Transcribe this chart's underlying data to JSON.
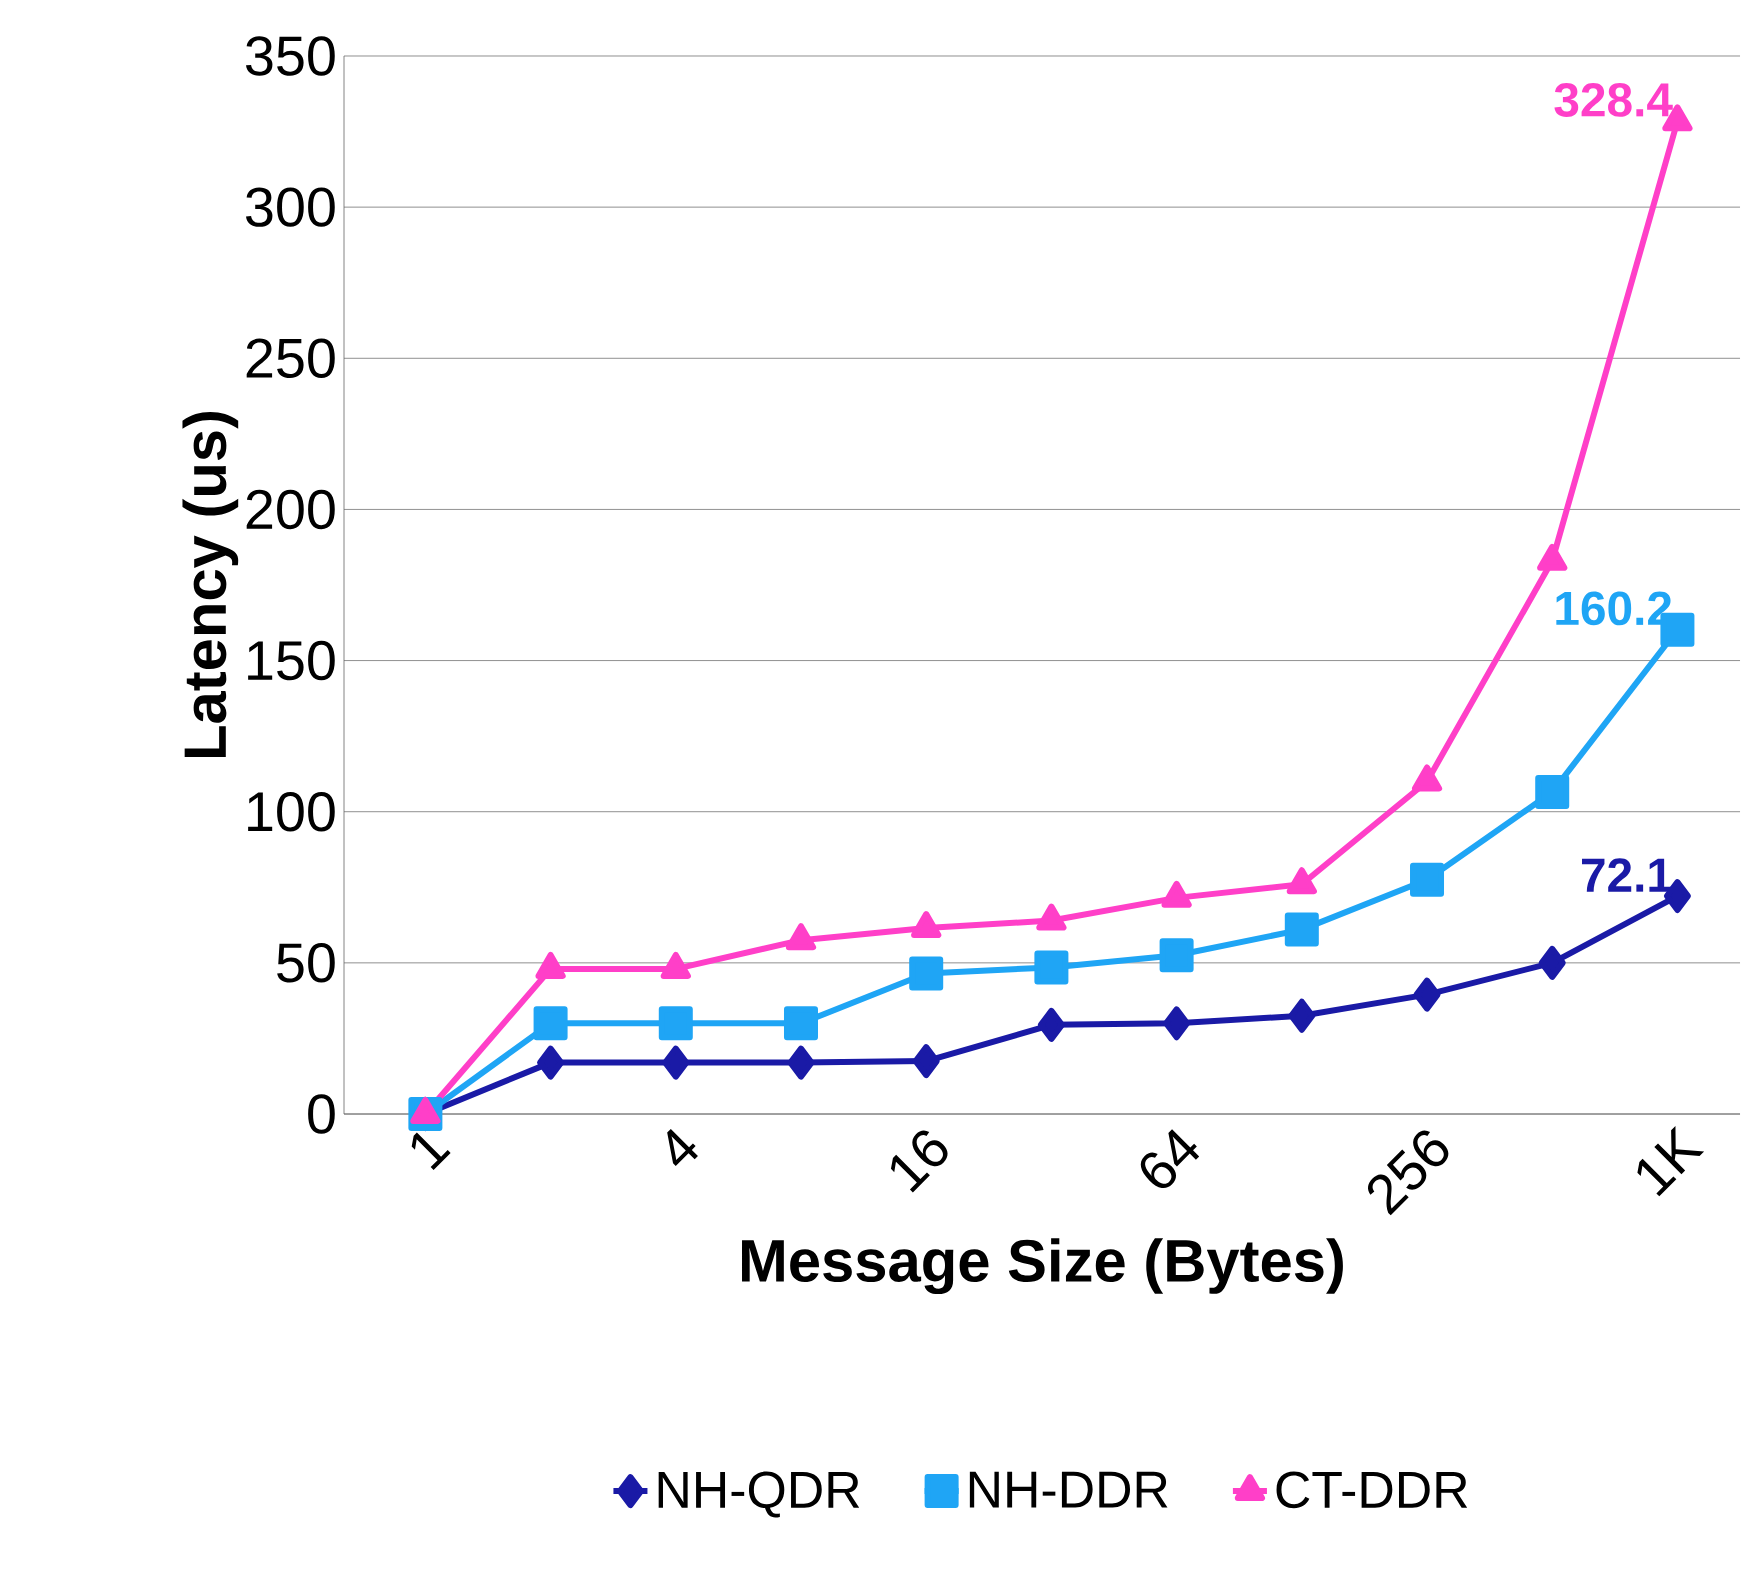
{
  "chart_data": {
    "type": "line",
    "xlabel": "Message Size (Bytes)",
    "ylabel": "Latency (us)",
    "categories": [
      "1",
      null,
      "4",
      null,
      "16",
      null,
      "64",
      null,
      "256",
      null,
      "1K"
    ],
    "series": [
      {
        "name": "NH-QDR",
        "color": "#1a1aa6",
        "marker": "diamond",
        "values": [
          0,
          17,
          17,
          17,
          17.5,
          29.5,
          30,
          32.5,
          39.5,
          50,
          72.1
        ],
        "value_labels": [
          null,
          null,
          null,
          null,
          null,
          null,
          null,
          null,
          null,
          null,
          "72.1"
        ]
      },
      {
        "name": "NH-DDR",
        "color": "#1fa5f5",
        "marker": "square",
        "values": [
          0,
          30,
          30,
          30,
          46.5,
          48.5,
          52.5,
          61,
          77.5,
          106.5,
          160.2
        ],
        "value_labels": [
          null,
          null,
          null,
          null,
          null,
          null,
          null,
          null,
          null,
          null,
          "160.2"
        ]
      },
      {
        "name": "CT-DDR",
        "color": "#ff3fc8",
        "marker": "triangle",
        "values": [
          0,
          48,
          48,
          57.5,
          61.5,
          64,
          71.5,
          76,
          110,
          183,
          328.4
        ],
        "value_labels": [
          null,
          null,
          null,
          null,
          null,
          null,
          null,
          null,
          null,
          null,
          "328.4"
        ]
      }
    ],
    "ylim": [
      0,
      350
    ],
    "yticks": [
      0,
      50,
      100,
      150,
      200,
      250,
      300,
      350
    ],
    "grid": "y",
    "legend": "bottom",
    "line_style": "solid"
  }
}
